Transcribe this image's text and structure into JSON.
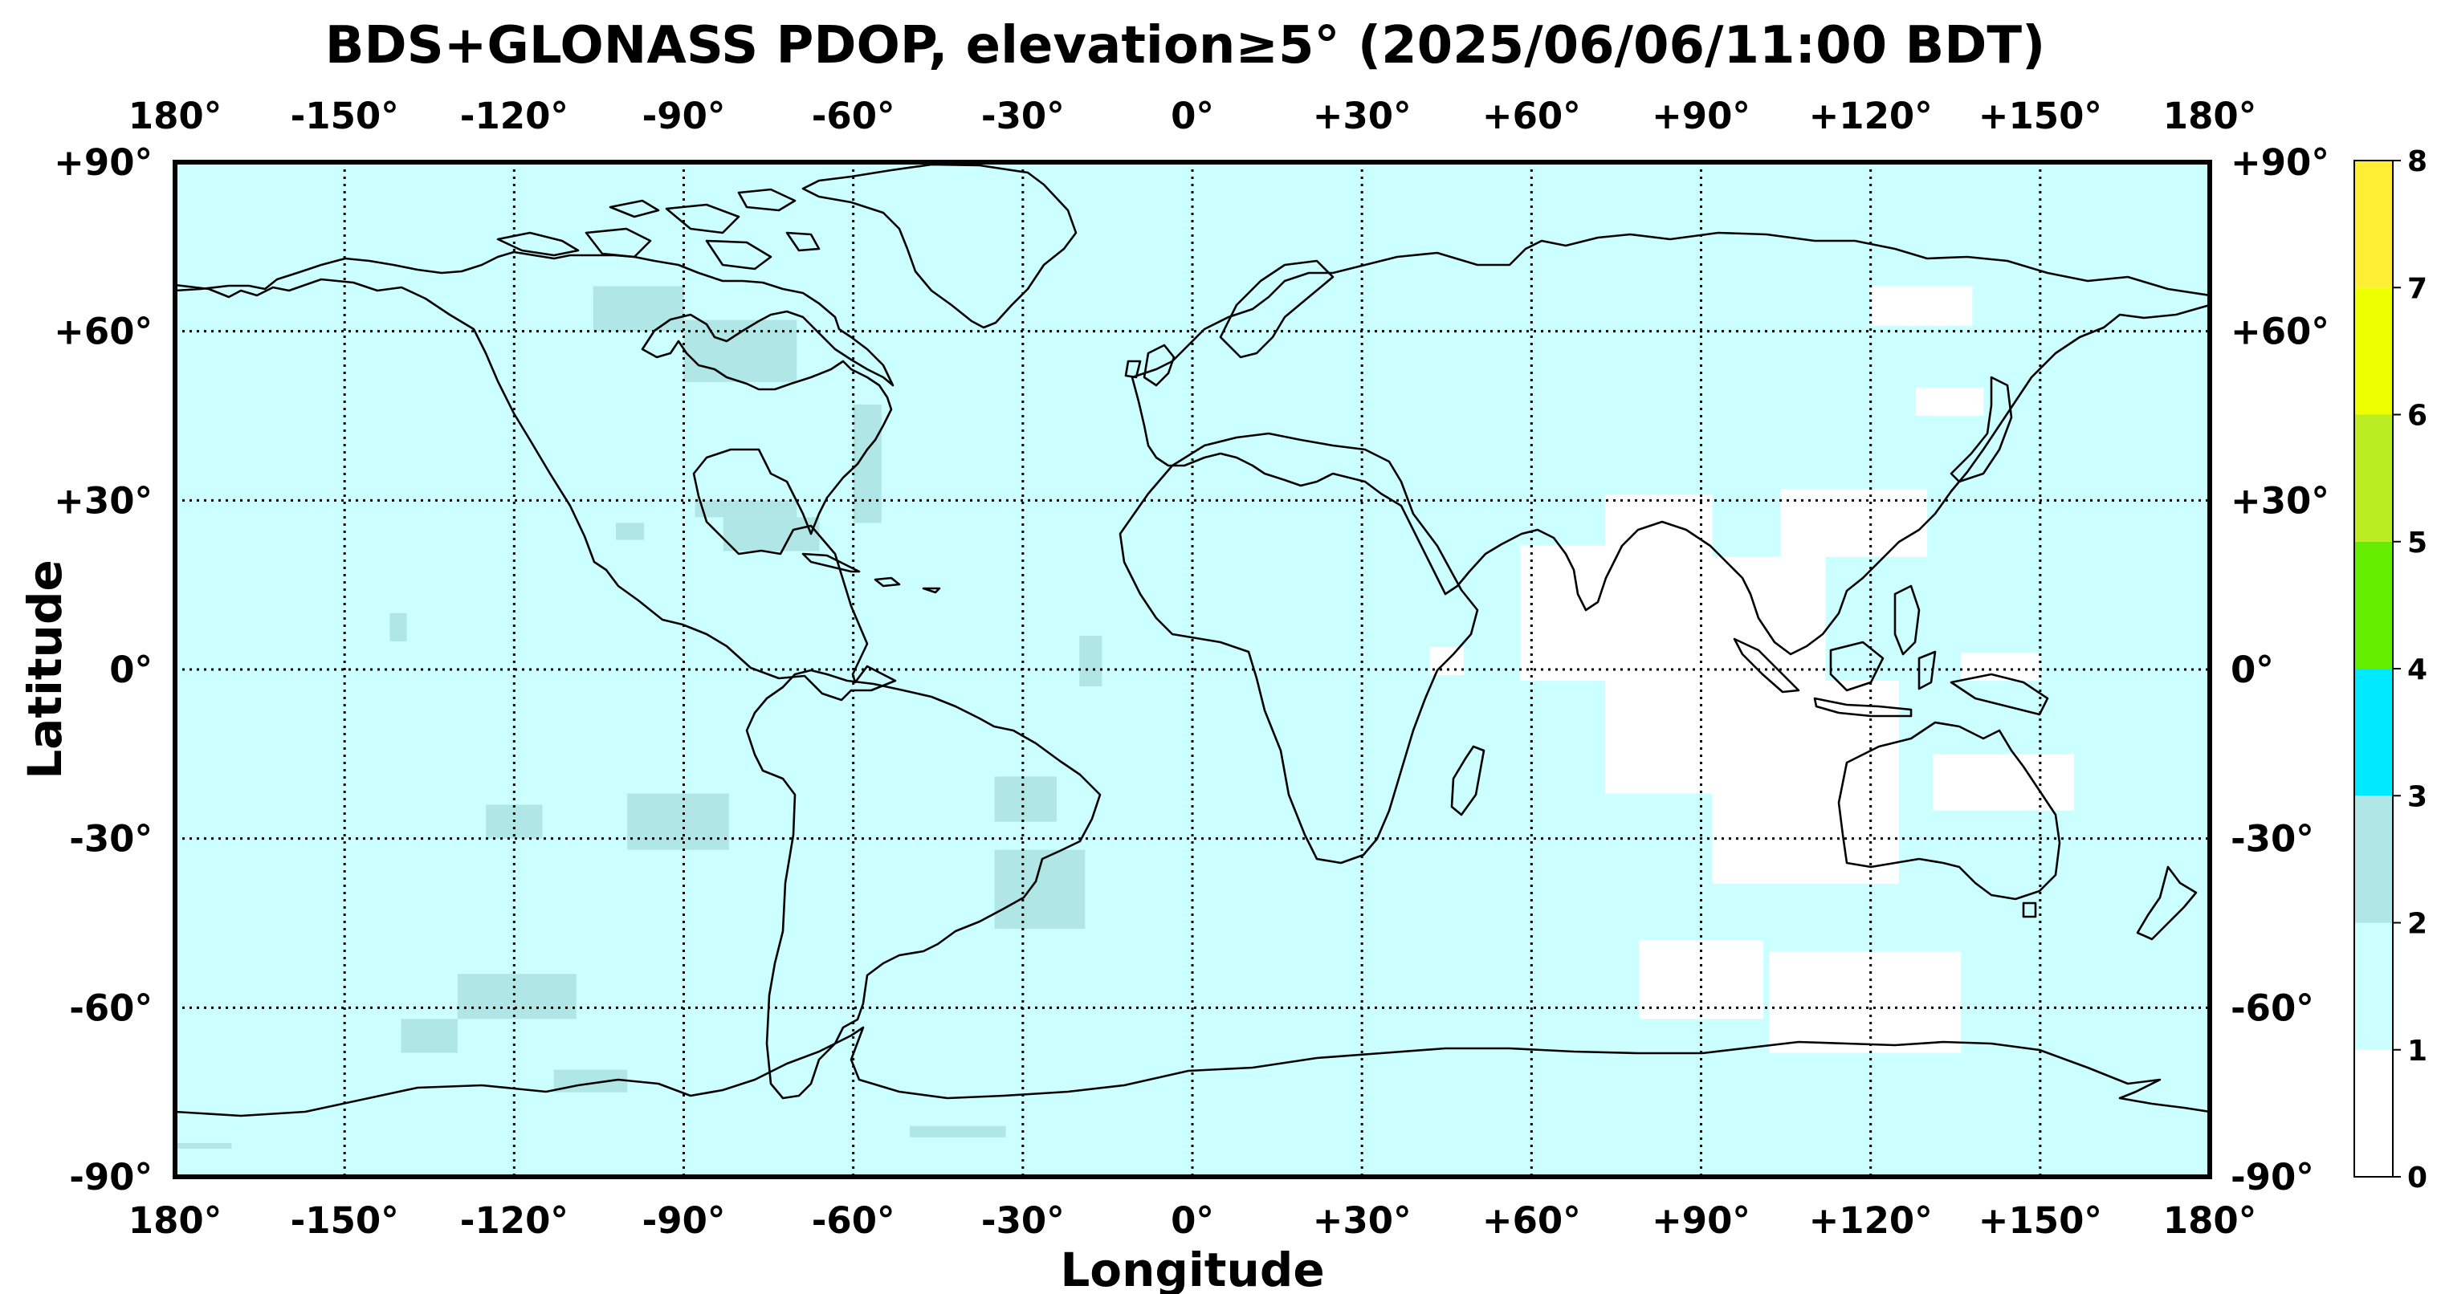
{
  "chart_data": {
    "type": "heatmap",
    "title": "BDS+GLONASS PDOP, elevation≥5° (2025/06/06/11:00 BDT)",
    "xlabel": "Longitude",
    "ylabel": "Latitude",
    "xlim": [
      -180,
      180
    ],
    "ylim": [
      -90,
      90
    ],
    "grid": true,
    "grid_style": "dotted",
    "x_ticks": [
      {
        "value": -180,
        "label": "180°"
      },
      {
        "value": -150,
        "label": "-150°"
      },
      {
        "value": -120,
        "label": "-120°"
      },
      {
        "value": -90,
        "label": "-90°"
      },
      {
        "value": -60,
        "label": "-60°"
      },
      {
        "value": -30,
        "label": "-30°"
      },
      {
        "value": 0,
        "label": "0°"
      },
      {
        "value": 30,
        "label": "+30°"
      },
      {
        "value": 60,
        "label": "+60°"
      },
      {
        "value": 90,
        "label": "+90°"
      },
      {
        "value": 120,
        "label": "+120°"
      },
      {
        "value": 150,
        "label": "+150°"
      },
      {
        "value": 180,
        "label": "180°"
      }
    ],
    "y_ticks": [
      {
        "value": 90,
        "label": "+90°"
      },
      {
        "value": 60,
        "label": "+60°"
      },
      {
        "value": 30,
        "label": "+30°"
      },
      {
        "value": 0,
        "label": "0°"
      },
      {
        "value": -30,
        "label": "-30°"
      },
      {
        "value": -60,
        "label": "-60°"
      },
      {
        "value": -90,
        "label": "-90°"
      }
    ],
    "colorbar": {
      "ticks": [
        "0",
        "1",
        "2",
        "3",
        "4",
        "5",
        "6",
        "7",
        "8"
      ],
      "bins": [
        {
          "from": 0,
          "to": 1,
          "color": "#ffffff"
        },
        {
          "from": 1,
          "to": 2,
          "color": "#ccffff"
        },
        {
          "from": 2,
          "to": 3,
          "color": "#b0e6e6"
        },
        {
          "from": 3,
          "to": 4,
          "color": "#00eaff"
        },
        {
          "from": 4,
          "to": 5,
          "color": "#66ee00"
        },
        {
          "from": 5,
          "to": 6,
          "color": "#bbee22"
        },
        {
          "from": 6,
          "to": 7,
          "color": "#eeff00"
        },
        {
          "from": 7,
          "to": 8,
          "color": "#ffee33"
        }
      ]
    },
    "background_value_bin": "1-2",
    "regions": [
      {
        "pdop_bin": "0-1",
        "lon": [
          58,
          79
        ],
        "lat": [
          -2,
          22
        ]
      },
      {
        "pdop_bin": "0-1",
        "lon": [
          73,
          92
        ],
        "lat": [
          -22,
          31
        ]
      },
      {
        "pdop_bin": "0-1",
        "lon": [
          92,
          112
        ],
        "lat": [
          -15,
          20
        ]
      },
      {
        "pdop_bin": "0-1",
        "lon": [
          92,
          125
        ],
        "lat": [
          -38,
          -2
        ]
      },
      {
        "pdop_bin": "0-1",
        "lon": [
          104,
          130
        ],
        "lat": [
          20,
          32
        ]
      },
      {
        "pdop_bin": "0-1",
        "lon": [
          131,
          156
        ],
        "lat": [
          -25,
          -15
        ]
      },
      {
        "pdop_bin": "0-1",
        "lon": [
          102,
          136
        ],
        "lat": [
          -68,
          -50
        ]
      },
      {
        "pdop_bin": "0-1",
        "lon": [
          79,
          101
        ],
        "lat": [
          -62,
          -48
        ]
      },
      {
        "pdop_bin": "0-1",
        "lon": [
          128,
          140
        ],
        "lat": [
          45,
          50
        ]
      },
      {
        "pdop_bin": "0-1",
        "lon": [
          120,
          138
        ],
        "lat": [
          61,
          68
        ]
      },
      {
        "pdop_bin": "0-1",
        "lon": [
          136,
          150
        ],
        "lat": [
          -2,
          3
        ]
      },
      {
        "pdop_bin": "0-1",
        "lon": [
          42,
          48
        ],
        "lat": [
          -1,
          4
        ]
      },
      {
        "pdop_bin": "2-3",
        "lon": [
          -106,
          -90
        ],
        "lat": [
          60,
          68
        ]
      },
      {
        "pdop_bin": "2-3",
        "lon": [
          -90,
          -70
        ],
        "lat": [
          51,
          62
        ]
      },
      {
        "pdop_bin": "2-3",
        "lon": [
          -60,
          -55
        ],
        "lat": [
          26,
          47
        ]
      },
      {
        "pdop_bin": "2-3",
        "lon": [
          -83,
          -66
        ],
        "lat": [
          21,
          27
        ]
      },
      {
        "pdop_bin": "2-3",
        "lon": [
          -88,
          -70
        ],
        "lat": [
          27,
          30
        ]
      },
      {
        "pdop_bin": "2-3",
        "lon": [
          -102,
          -97
        ],
        "lat": [
          23,
          26
        ]
      },
      {
        "pdop_bin": "2-3",
        "lon": [
          -142,
          -139
        ],
        "lat": [
          5,
          10
        ]
      },
      {
        "pdop_bin": "2-3",
        "lon": [
          -20,
          -16
        ],
        "lat": [
          -3,
          6
        ]
      },
      {
        "pdop_bin": "2-3",
        "lon": [
          -100,
          -82
        ],
        "lat": [
          -32,
          -22
        ]
      },
      {
        "pdop_bin": "2-3",
        "lon": [
          -35,
          -24
        ],
        "lat": [
          -27,
          -19
        ]
      },
      {
        "pdop_bin": "2-3",
        "lon": [
          -35,
          -19
        ],
        "lat": [
          -46,
          -32
        ]
      },
      {
        "pdop_bin": "2-3",
        "lon": [
          -125,
          -115
        ],
        "lat": [
          -30,
          -24
        ]
      },
      {
        "pdop_bin": "2-3",
        "lon": [
          -130,
          -109
        ],
        "lat": [
          -62,
          -54
        ]
      },
      {
        "pdop_bin": "2-3",
        "lon": [
          -140,
          -130
        ],
        "lat": [
          -68,
          -62
        ]
      },
      {
        "pdop_bin": "2-3",
        "lon": [
          -113,
          -100
        ],
        "lat": [
          -75,
          -71
        ]
      },
      {
        "pdop_bin": "2-3",
        "lon": [
          -50,
          -33
        ],
        "lat": [
          -83,
          -81
        ]
      },
      {
        "pdop_bin": "2-3",
        "lon": [
          -180,
          -170
        ],
        "lat": [
          -85,
          -84
        ]
      }
    ]
  },
  "colors": {
    "frame": "#000000",
    "coastline": "#000000",
    "grid": "#000000"
  }
}
